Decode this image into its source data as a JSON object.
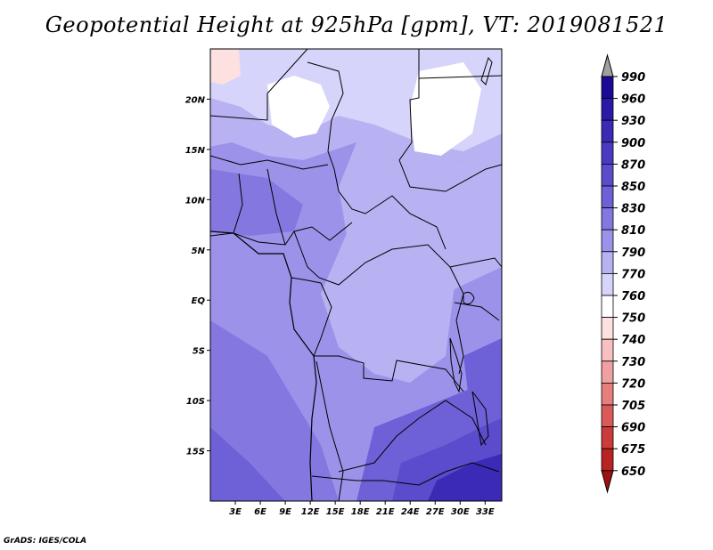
{
  "title": "Geopotential Height at 925hPa [gpm], VT: 2019081521",
  "credit": "GrADS: IGES/COLA",
  "map": {
    "lon_range": [
      0,
      35
    ],
    "lat_range": [
      -20,
      25
    ],
    "x_ticks": [
      "3E",
      "6E",
      "9E",
      "12E",
      "15E",
      "18E",
      "21E",
      "24E",
      "27E",
      "30E",
      "33E"
    ],
    "x_tick_values": [
      3,
      6,
      9,
      12,
      15,
      18,
      21,
      24,
      27,
      30,
      33
    ],
    "y_ticks": [
      "20N",
      "15N",
      "10N",
      "5N",
      "EQ",
      "5S",
      "10S",
      "15S"
    ],
    "y_tick_values": [
      20,
      15,
      10,
      5,
      0,
      -5,
      -10,
      -15
    ]
  },
  "colorbar": {
    "labels": [
      "990",
      "960",
      "930",
      "900",
      "870",
      "850",
      "830",
      "810",
      "790",
      "770",
      "760",
      "750",
      "740",
      "730",
      "720",
      "705",
      "690",
      "675",
      "650"
    ],
    "colors": [
      "#1a0a96",
      "#2a1aa8",
      "#3a2ab6",
      "#4a3ac2",
      "#5a4ccc",
      "#6e60d6",
      "#8478e0",
      "#9c92ea",
      "#b8b2f2",
      "#d6d4fa",
      "#ffffff",
      "#fde0e0",
      "#f8c0c0",
      "#f0a0a0",
      "#e67e7e",
      "#da5a5a",
      "#cc3a3a",
      "#bb2222",
      "#a01010"
    ],
    "top_arrow_color": "#a0a0a0",
    "bottom_arrow_color": "#a01010"
  }
}
